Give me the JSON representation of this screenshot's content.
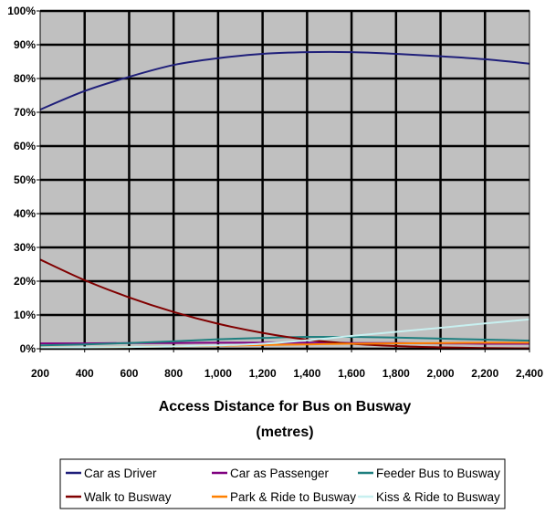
{
  "chart_data": {
    "type": "line",
    "title": "",
    "xlabel": "Access Distance for Bus on Busway",
    "xlabel_unit": "(metres)",
    "ylabel": "",
    "x": [
      200,
      400,
      600,
      800,
      1000,
      1200,
      1400,
      1600,
      1800,
      2000,
      2200,
      2400
    ],
    "x_tick_labels": [
      "200",
      "400",
      "600",
      "800",
      "1,000",
      "1,200",
      "1,400",
      "1,600",
      "1,800",
      "2,000",
      "2,200",
      "2,400"
    ],
    "xlim": [
      200,
      2400
    ],
    "y_tick_labels": [
      "0%",
      "10%",
      "20%",
      "30%",
      "40%",
      "50%",
      "60%",
      "70%",
      "80%",
      "90%",
      "100%"
    ],
    "ylim": [
      0,
      100
    ],
    "grid": true,
    "plot_background": "#C0C0C0",
    "gridline_color": "#000000",
    "legend_position": "bottom",
    "series": [
      {
        "name": "Car as Driver",
        "color": "#1F1F7A",
        "values": [
          70.8,
          76.3,
          80.5,
          84.0,
          86.0,
          87.3,
          87.8,
          87.8,
          87.3,
          86.6,
          85.7,
          84.4
        ]
      },
      {
        "name": "Car as Passenger",
        "color": "#800080",
        "values": [
          1.6,
          1.6,
          1.7,
          1.7,
          1.8,
          1.8,
          1.8,
          1.7,
          1.7,
          1.6,
          1.5,
          1.5
        ]
      },
      {
        "name": "Feeder Bus to Busway",
        "color": "#1F7F7F",
        "values": [
          1.0,
          1.3,
          1.7,
          2.2,
          2.8,
          3.2,
          3.5,
          3.5,
          3.3,
          3.0,
          2.7,
          2.4
        ]
      },
      {
        "name": "Walk to Busway",
        "color": "#800000",
        "values": [
          26.4,
          20.3,
          15.2,
          10.9,
          7.4,
          4.7,
          2.7,
          1.5,
          0.8,
          0.4,
          0.2,
          0.1
        ]
      },
      {
        "name": "Park & Ride to Busway",
        "color": "#FF8000",
        "values": [
          0.3,
          0.4,
          0.5,
          0.7,
          0.9,
          1.1,
          1.3,
          1.5,
          1.6,
          1.7,
          1.8,
          1.8
        ]
      },
      {
        "name": "Kiss & Ride to Busway",
        "color": "#C8F0F0",
        "values": [
          0.3,
          0.4,
          0.5,
          0.7,
          1.0,
          1.5,
          2.5,
          3.8,
          5.0,
          6.2,
          7.5,
          8.7
        ]
      }
    ]
  }
}
